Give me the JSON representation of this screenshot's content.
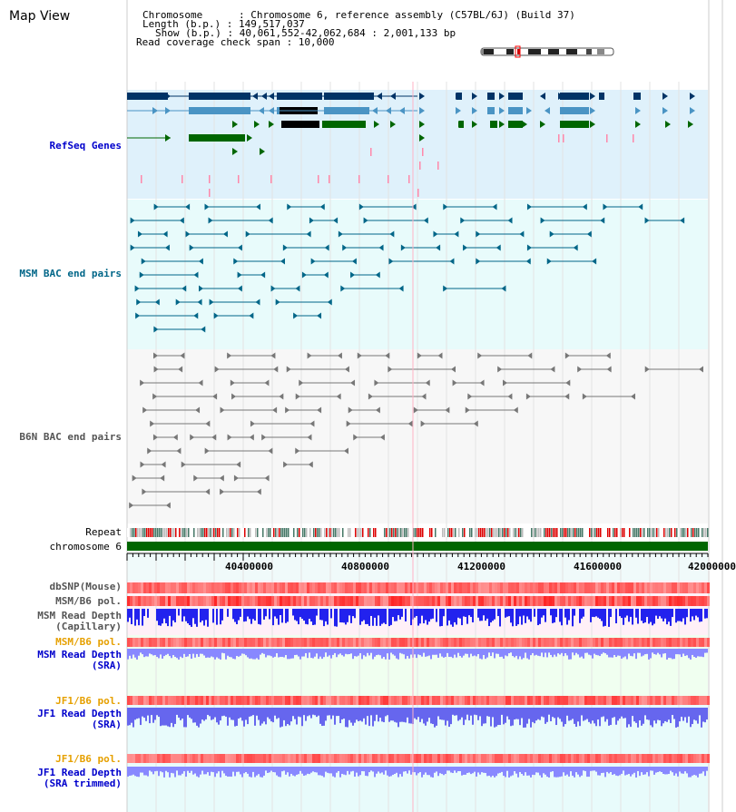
{
  "page": {
    "title": "Map View"
  },
  "info": {
    "lines": [
      "Chromosome      : Chromosome 6, reference assembly (C57BL/6J) (Build 37)",
      "Length (b.p.) : 149,517,037",
      "Show (b.p.) : 40,061,552-42,062,684 : 2,001,133 bp",
      "Read coverage check span : 10,000"
    ]
  },
  "tracks": {
    "refseq": "RefSeq Genes",
    "msm_bac": "MSM BAC end pairs",
    "b6n_bac": "B6N BAC end pairs",
    "repeat": "Repeat",
    "chromosome": "chromosome 6",
    "dbsnp": "dbSNP(Mouse)",
    "msm_b6_pol": "MSM/B6 pol.",
    "msm_depth_cap": "MSM Read Depth\n(Capillary)",
    "msm_b6_pol_2": "MSM/B6 pol.",
    "msm_depth_sra": "MSM Read Depth\n(SRA)",
    "jf1_b6_pol": "JF1/B6 pol.",
    "jf1_depth_sra": "JF1 Read Depth\n(SRA)",
    "jf1_b6_pol_2": "JF1/B6 pol.",
    "jf1_depth_trim": "JF1 Read Depth\n(SRA trimmed)"
  },
  "axis": {
    "ticks": [
      "40400000",
      "40800000",
      "41200000",
      "41600000",
      "42000000"
    ]
  },
  "colors": {
    "refseq_bg": "#dff1fb",
    "msm_bg": "#e8fbfb",
    "b6n_bg": "#f4f4f4",
    "gene_dark": "#003366",
    "gene_mid": "#4a94c4",
    "gene_green": "#006600",
    "msm_line": "#006688",
    "b6n_line": "#777777",
    "chromosome": "#006600",
    "depth_blue": "#2222ee",
    "depth_light": "#8888ff",
    "pol_red": "#ee3333"
  }
}
